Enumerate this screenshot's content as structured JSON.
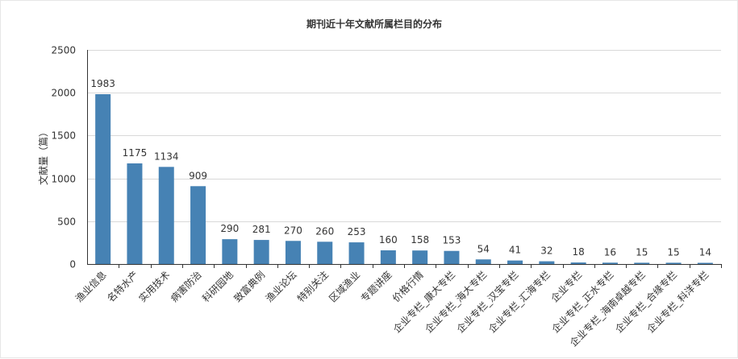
{
  "chart_data": {
    "type": "bar",
    "title": "期刊近十年文献所属栏目的分布",
    "ylabel": "文献量（篇）",
    "xlabel": "",
    "ylim": [
      0,
      2500
    ],
    "yticks": [
      0,
      500,
      1000,
      1500,
      2000,
      2500
    ],
    "grid": true,
    "bar_color": "#4682b4",
    "categories": [
      "渔业信息",
      "名特水产",
      "实用技术",
      "病害防治",
      "科研园地",
      "致富典例",
      "渔业论坛",
      "特别关注",
      "区域渔业",
      "专题讲座",
      "价格行情",
      "企业专栏_康大专栏",
      "企业专栏_海大专栏",
      "企业专栏_汉宝专栏",
      "企业专栏_汇海专栏",
      "企业专栏",
      "企业专栏_正水专栏",
      "企业专栏_海南卓越专栏",
      "企业专栏_合缘专栏",
      "企业专栏_科洋专栏"
    ],
    "values": [
      1983,
      1175,
      1134,
      909,
      290,
      281,
      270,
      260,
      253,
      160,
      158,
      153,
      54,
      41,
      32,
      18,
      16,
      15,
      15,
      14
    ]
  }
}
